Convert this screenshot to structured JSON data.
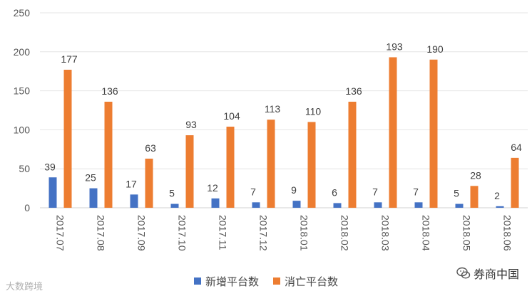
{
  "chart_data": {
    "type": "bar",
    "categories": [
      "2017.07",
      "2017.08",
      "2017.09",
      "2017.10",
      "2017.11",
      "2017.12",
      "2018.01",
      "2018.02",
      "2018.03",
      "2018.04",
      "2018.05",
      "2018.06"
    ],
    "series": [
      {
        "name": "新增平台数",
        "values": [
          39,
          25,
          17,
          5,
          12,
          7,
          9,
          6,
          7,
          7,
          5,
          2
        ],
        "color": "#4472C4"
      },
      {
        "name": "消亡平台数",
        "values": [
          177,
          136,
          63,
          93,
          104,
          113,
          110,
          136,
          193,
          190,
          28,
          64
        ],
        "color": "#ED7D31"
      }
    ],
    "ylim": [
      0,
      250
    ],
    "yticks": [
      0,
      50,
      100,
      150,
      200,
      250
    ],
    "grid": true,
    "legend_position": "bottom-center"
  },
  "watermarks": {
    "left": "大数跨境",
    "right": "券商中国"
  }
}
